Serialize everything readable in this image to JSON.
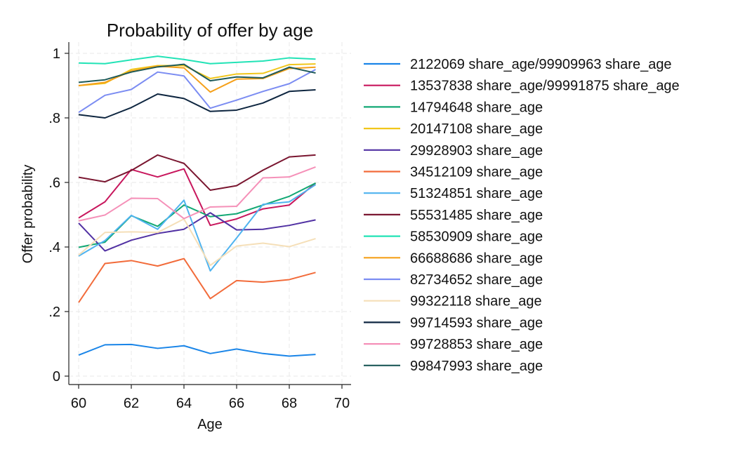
{
  "chart_data": {
    "type": "line",
    "title": "Probability of offer by age",
    "xlabel": "Age",
    "ylabel": "Offer probability",
    "xlim": [
      60,
      70
    ],
    "ylim": [
      0,
      1
    ],
    "x_ticks": [
      60,
      62,
      64,
      66,
      68,
      70
    ],
    "y_ticks": [
      0,
      0.2,
      0.4,
      0.6,
      0.8,
      1
    ],
    "x_tick_labels": [
      "60",
      "62",
      "64",
      "66",
      "68",
      "70"
    ],
    "y_tick_labels": [
      "0",
      ".2",
      ".4",
      ".6",
      ".8",
      "1"
    ],
    "grid": true,
    "legend_position": "right",
    "x": [
      60,
      61,
      62,
      63,
      64,
      65,
      66,
      67,
      68,
      69
    ],
    "series": [
      {
        "name": "2122069 share_age/99909963 share_age",
        "color": "#1a85e8",
        "values": [
          0.065,
          0.097,
          0.098,
          0.086,
          0.094,
          0.07,
          0.084,
          0.07,
          0.062,
          0.067
        ]
      },
      {
        "name": "13537838 share_age/99991875 share_age",
        "color": "#c8175d",
        "values": [
          0.49,
          0.54,
          0.64,
          0.617,
          0.642,
          0.467,
          0.487,
          0.518,
          0.53,
          0.598
        ]
      },
      {
        "name": "14794648 share_age",
        "color": "#12a874",
        "values": [
          0.399,
          0.415,
          0.497,
          0.464,
          0.53,
          0.494,
          0.503,
          0.53,
          0.557,
          0.598
        ]
      },
      {
        "name": "20147108 share_age",
        "color": "#f1c61b",
        "values": [
          0.9,
          0.907,
          0.95,
          0.962,
          0.962,
          0.922,
          0.936,
          0.938,
          0.965,
          0.967
        ]
      },
      {
        "name": "29928903 share_age",
        "color": "#5131a3",
        "values": [
          0.474,
          0.388,
          0.421,
          0.442,
          0.455,
          0.506,
          0.453,
          0.455,
          0.467,
          0.484
        ]
      },
      {
        "name": "34512109 share_age",
        "color": "#f26b3a",
        "values": [
          0.228,
          0.349,
          0.358,
          0.341,
          0.364,
          0.24,
          0.296,
          0.291,
          0.299,
          0.321
        ]
      },
      {
        "name": "51324851 share_age",
        "color": "#4fb3ef",
        "values": [
          0.372,
          0.42,
          0.498,
          0.455,
          0.545,
          0.326,
          0.428,
          0.532,
          0.54,
          0.593
        ]
      },
      {
        "name": "55531485 share_age",
        "color": "#7a1630",
        "values": [
          0.616,
          0.602,
          0.637,
          0.685,
          0.659,
          0.576,
          0.59,
          0.638,
          0.679,
          0.685
        ]
      },
      {
        "name": "58530909 share_age",
        "color": "#22e3b6",
        "values": [
          0.97,
          0.968,
          0.98,
          0.991,
          0.981,
          0.968,
          0.972,
          0.976,
          0.986,
          0.982
        ]
      },
      {
        "name": "66688686 share_age",
        "color": "#f5a01a",
        "values": [
          0.9,
          0.91,
          0.945,
          0.96,
          0.955,
          0.88,
          0.92,
          0.922,
          0.953,
          0.957
        ]
      },
      {
        "name": "82734652 share_age",
        "color": "#7b8cf2",
        "values": [
          0.817,
          0.87,
          0.888,
          0.942,
          0.93,
          0.83,
          0.855,
          0.882,
          0.906,
          0.95
        ]
      },
      {
        "name": "99322118 share_age",
        "color": "#f5dfb8",
        "values": [
          0.375,
          0.445,
          0.447,
          0.445,
          0.487,
          0.343,
          0.403,
          0.412,
          0.401,
          0.426
        ]
      },
      {
        "name": "99714593 share_age",
        "color": "#0e2640",
        "values": [
          0.81,
          0.8,
          0.832,
          0.874,
          0.86,
          0.82,
          0.824,
          0.846,
          0.882,
          0.887
        ]
      },
      {
        "name": "99728853 share_age",
        "color": "#f590b8",
        "values": [
          0.481,
          0.499,
          0.551,
          0.55,
          0.488,
          0.524,
          0.526,
          0.614,
          0.617,
          0.648
        ]
      },
      {
        "name": "99847993 share_age",
        "color": "#1e5a58",
        "values": [
          0.91,
          0.918,
          0.942,
          0.958,
          0.966,
          0.915,
          0.927,
          0.924,
          0.957,
          0.939
        ]
      }
    ]
  }
}
